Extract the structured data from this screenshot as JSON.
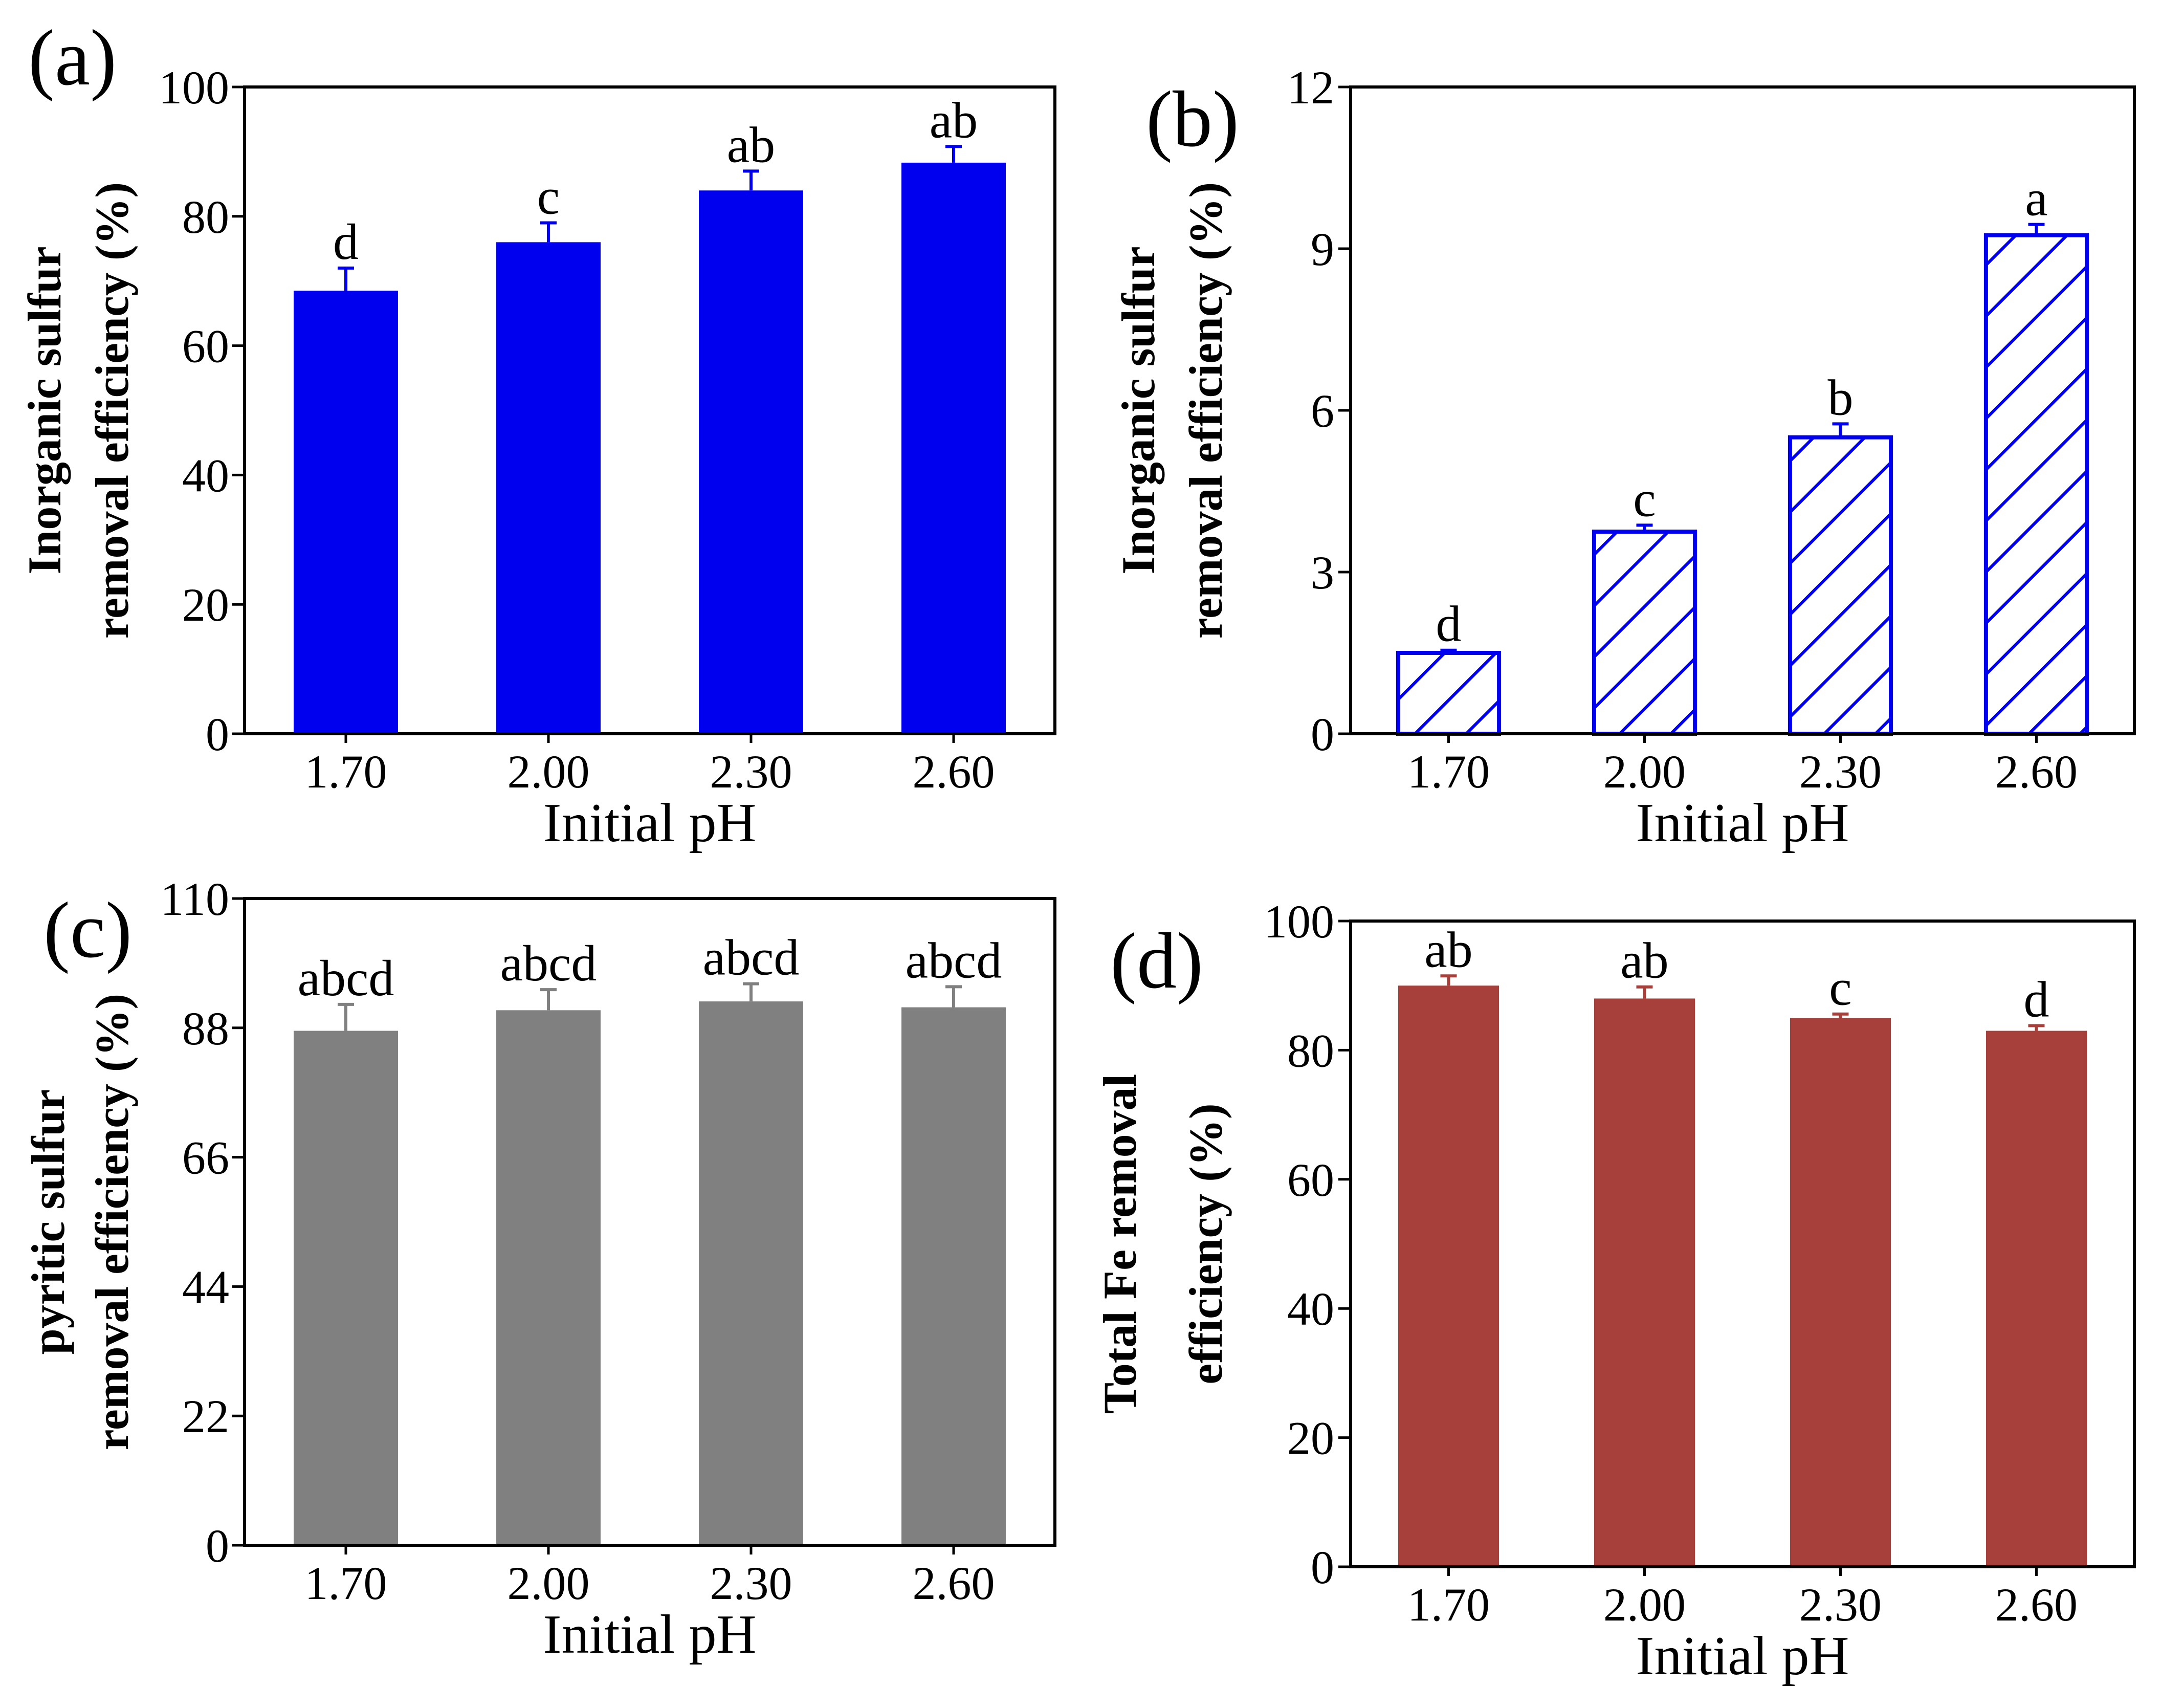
{
  "chart_data": [
    {
      "type": "bar",
      "panel": "(a)",
      "categories": [
        "1.70",
        "2.00",
        "2.30",
        "2.60"
      ],
      "values": [
        68.5,
        76,
        84,
        88.3
      ],
      "errors": [
        3.5,
        3,
        3,
        2.5
      ],
      "sig_labels": [
        "d",
        "c",
        "ab",
        "ab"
      ],
      "ylabel_lines": [
        "Inorganic sulfur",
        "removal efficiency (%)"
      ],
      "xlabel": "Initial pH",
      "ylim": [
        0,
        100
      ],
      "yticks": [
        "0",
        "20",
        "40",
        "60",
        "80",
        "100"
      ],
      "style": "solid",
      "color": "#0000ee",
      "error_color": "#0000ee"
    },
    {
      "type": "bar",
      "panel": "(b)",
      "categories": [
        "1.70",
        "2.00",
        "2.30",
        "2.60"
      ],
      "values": [
        1.5,
        3.75,
        5.5,
        9.25
      ],
      "errors": [
        0.05,
        0.12,
        0.25,
        0.2
      ],
      "sig_labels": [
        "d",
        "c",
        "b",
        "a"
      ],
      "ylabel_lines": [
        "Inorganic sulfur",
        "removal efficiency (%)"
      ],
      "xlabel": "Initial pH",
      "ylim": [
        0,
        12
      ],
      "yticks": [
        "0",
        "3",
        "6",
        "9",
        "12"
      ],
      "style": "hatched",
      "color": "#0000ee",
      "error_color": "#0000ee"
    },
    {
      "type": "bar",
      "panel": "(c)",
      "categories": [
        "1.70",
        "2.00",
        "2.30",
        "2.60"
      ],
      "values": [
        87.5,
        91,
        92.5,
        91.5
      ],
      "errors": [
        4.5,
        3.5,
        3,
        3.5
      ],
      "sig_labels": [
        "abcd",
        "abcd",
        "abcd",
        "abcd"
      ],
      "ylabel_lines": [
        "pyritic sulfur",
        "removal efficiency (%)"
      ],
      "xlabel": "Initial pH",
      "ylim": [
        0,
        110
      ],
      "yticks": [
        "0",
        "22",
        "44",
        "66",
        "88",
        "110"
      ],
      "style": "solid",
      "color": "#808080",
      "error_color": "#808080"
    },
    {
      "type": "bar",
      "panel": "(d)",
      "categories": [
        "1.70",
        "2.00",
        "2.30",
        "2.60"
      ],
      "values": [
        90,
        88,
        85,
        83
      ],
      "errors": [
        1.5,
        1.8,
        0.6,
        0.8
      ],
      "sig_labels": [
        "ab",
        "ab",
        "c",
        "d"
      ],
      "ylabel_lines": [
        "Total Fe removal",
        "efficiency (%)"
      ],
      "xlabel": "Initial pH",
      "ylim": [
        0,
        100
      ],
      "yticks": [
        "0",
        "20",
        "40",
        "60",
        "80",
        "100"
      ],
      "style": "solid",
      "color": "#a7403a",
      "error_color": "#a7403a"
    }
  ]
}
